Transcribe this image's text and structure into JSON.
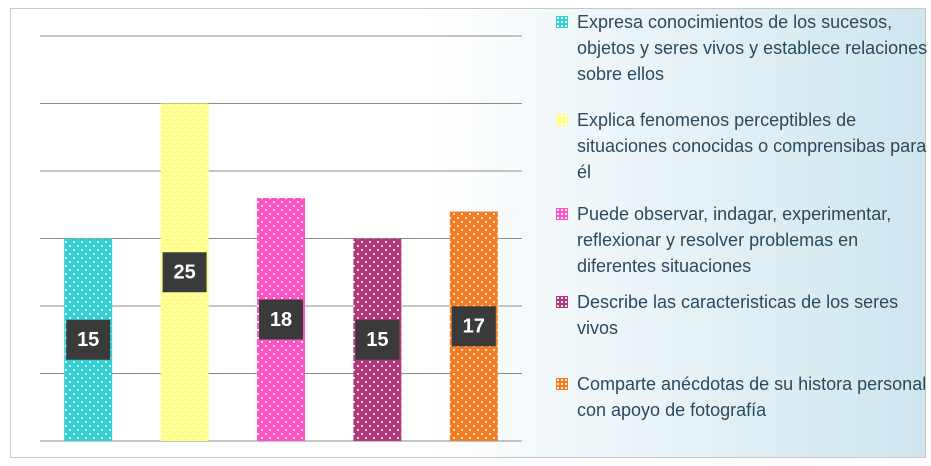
{
  "chart_data": {
    "type": "bar",
    "categories": [
      "Expresa conocimientos de los sucesos, objetos y seres vivos y establece relaciones sobre ellos",
      "Explica fenomenos perceptibles de situaciones conocidas o comprensibas para él",
      "Puede observar, indagar, experimentar, reflexionar y resolver problemas en diferentes situaciones",
      "Describe las caracteristicas de los seres vivos",
      "Comparte anécdotas de su histora personal con apoyo de fotografía"
    ],
    "values": [
      15,
      25,
      18,
      15,
      17
    ],
    "colors": [
      "#33d1d1",
      "#ffff88",
      "#ff55c4",
      "#b23a7a",
      "#f47c24"
    ],
    "ylim": [
      0,
      30
    ],
    "yticks": [
      0,
      5,
      10,
      15,
      20,
      25,
      30
    ],
    "grid": true,
    "legend": "right"
  }
}
